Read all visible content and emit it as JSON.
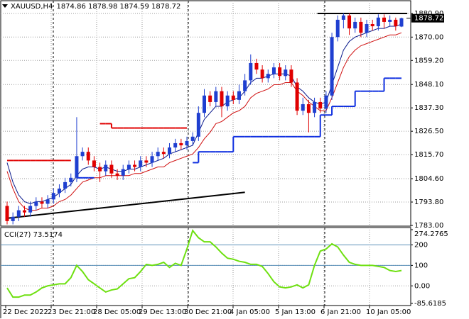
{
  "chart_data": [
    {
      "type": "candlestick",
      "title": "XAUUSD,H4",
      "ohlc_text": "1874.86 1878.98 1874.59 1878.72",
      "x_labels": [
        "22 Dec 2022",
        "23 Dec 21:00",
        "28 Dec 05:00",
        "29 Dec 13:00",
        "30 Dec 21:00",
        "4 Jan 05:00",
        "5 Jan 13:00",
        "6 Jan 21:00",
        "10 Jan 05:00"
      ],
      "up_color": "#1f3fd0",
      "down_color": "#e00000",
      "open": [
        1792,
        1785,
        1787,
        1790,
        1789,
        1792,
        1794,
        1793,
        1795,
        1798,
        1800,
        1803,
        1805,
        1815,
        1817,
        1813,
        1810,
        1808,
        1811,
        1807,
        1806,
        1809,
        1811,
        1810,
        1813,
        1812,
        1815,
        1817,
        1816,
        1819,
        1821,
        1820,
        1822,
        1824,
        1835,
        1843,
        1840,
        1845,
        1838,
        1843,
        1841,
        1845,
        1850,
        1858,
        1855,
        1851,
        1853,
        1856,
        1852,
        1855,
        1849,
        1836,
        1839,
        1835,
        1840,
        1837,
        1843,
        1870,
        1878,
        1880,
        1874,
        1877,
        1872,
        1876,
        1875,
        1879,
        1877,
        1878,
        1874.86
      ],
      "high": [
        1794,
        1789,
        1792,
        1792,
        1794,
        1796,
        1796,
        1797,
        1800,
        1802,
        1805,
        1807,
        1833,
        1819,
        1819,
        1815,
        1812,
        1813,
        1813,
        1809,
        1811,
        1813,
        1813,
        1815,
        1815,
        1817,
        1819,
        1819,
        1821,
        1823,
        1823,
        1824,
        1826,
        1838,
        1846,
        1845,
        1847,
        1847,
        1845,
        1845,
        1848,
        1853,
        1862,
        1860,
        1857,
        1855,
        1858,
        1858,
        1857,
        1857,
        1851,
        1842,
        1841,
        1842,
        1842,
        1845,
        1872,
        1880,
        1881,
        1881,
        1879,
        1879,
        1878,
        1878,
        1880.5,
        1880.5,
        1880,
        1879,
        1878.98
      ],
      "low": [
        1783.5,
        1783.5,
        1785,
        1787,
        1787,
        1790,
        1791,
        1791,
        1793,
        1796,
        1798,
        1801,
        1803,
        1813,
        1811,
        1808,
        1803,
        1806,
        1805,
        1804,
        1804,
        1807,
        1808,
        1808,
        1810,
        1810,
        1813,
        1814,
        1814,
        1817,
        1818,
        1818,
        1820,
        1822,
        1833,
        1838,
        1838,
        1833,
        1836,
        1839,
        1839,
        1843,
        1848,
        1853,
        1849,
        1849,
        1851,
        1850,
        1850,
        1847,
        1834,
        1834,
        1826,
        1833,
        1835,
        1835,
        1841,
        1868,
        1874,
        1871,
        1872,
        1870,
        1870,
        1873,
        1873,
        1874,
        1875,
        1873,
        1874.59
      ],
      "close": [
        1785,
        1787,
        1790,
        1789,
        1792,
        1794,
        1793,
        1795,
        1798,
        1800,
        1803,
        1805,
        1815,
        1817,
        1813,
        1810,
        1808,
        1811,
        1807,
        1806,
        1809,
        1811,
        1810,
        1813,
        1812,
        1815,
        1817,
        1816,
        1819,
        1821,
        1820,
        1822,
        1824,
        1835,
        1843,
        1840,
        1845,
        1838,
        1843,
        1841,
        1845,
        1850,
        1858,
        1855,
        1851,
        1853,
        1856,
        1852,
        1855,
        1849,
        1836,
        1839,
        1835,
        1840,
        1837,
        1843,
        1870,
        1878,
        1880,
        1874,
        1877,
        1872,
        1876,
        1875,
        1879,
        1877,
        1878,
        1875,
        1878.72
      ],
      "lines": [
        {
          "color": "#0a1a8c",
          "step": false,
          "values": [
            1812,
            1803,
            1797,
            1794,
            1793,
            1794,
            1794,
            1795,
            1796,
            1798,
            1800,
            1802,
            1806,
            1809,
            1810,
            1810,
            1809,
            1810,
            1809,
            1808,
            1808,
            1809,
            1809,
            1810,
            1811,
            1812,
            1813,
            1814,
            1816,
            1817,
            1818,
            1819,
            1820,
            1826,
            1832,
            1835,
            1838,
            1838,
            1840,
            1841,
            1842,
            1845,
            1849,
            1851,
            1851,
            1852,
            1853,
            1853,
            1853,
            1852,
            1847,
            1845,
            1842,
            1840,
            1839,
            1840,
            1848,
            1856,
            1864,
            1868,
            1870,
            1871,
            1872,
            1873,
            1874,
            1874,
            1875,
            1875,
            1876
          ]
        },
        {
          "color": "#d01010",
          "step": false,
          "values": [
            1808,
            1800,
            1794,
            1791,
            1790,
            1790,
            1791,
            1791,
            1792,
            1794,
            1795,
            1797,
            1800,
            1803,
            1804,
            1805,
            1805,
            1806,
            1806,
            1806,
            1806,
            1806,
            1807,
            1807,
            1808,
            1809,
            1810,
            1810,
            1812,
            1813,
            1814,
            1815,
            1816,
            1819,
            1823,
            1826,
            1830,
            1831,
            1833,
            1835,
            1836,
            1838,
            1842,
            1844,
            1845,
            1846,
            1848,
            1848,
            1849,
            1849,
            1845,
            1843,
            1840,
            1838,
            1836,
            1836,
            1842,
            1849,
            1856,
            1861,
            1864,
            1866,
            1867,
            1868,
            1869,
            1870,
            1871,
            1871,
            1872
          ]
        },
        {
          "color": "#e00000",
          "step": true,
          "values": [
            1813,
            1813,
            1813,
            1813,
            1813,
            1813,
            1813,
            1813,
            1813,
            1813,
            1813,
            1813,
            null,
            null,
            null,
            null,
            1830,
            1830,
            1828,
            1828,
            1828,
            1828,
            1828,
            1828,
            1828,
            1828,
            1828,
            1828,
            1828,
            1828,
            1828,
            1828,
            null,
            null,
            null,
            null,
            null,
            null,
            null,
            null,
            null,
            null,
            null,
            null,
            null,
            null,
            null,
            null,
            null,
            null,
            null,
            null,
            null,
            null,
            null,
            null,
            null,
            null,
            null,
            null,
            null,
            null,
            null,
            null,
            null,
            null,
            null,
            null,
            null
          ]
        },
        {
          "color": "#1030e0",
          "step": true,
          "values": [
            null,
            null,
            null,
            null,
            null,
            null,
            null,
            null,
            null,
            null,
            null,
            null,
            1805,
            1805,
            1805,
            1805,
            null,
            null,
            null,
            null,
            null,
            null,
            null,
            null,
            null,
            null,
            null,
            null,
            null,
            null,
            null,
            null,
            1812,
            1817,
            1817,
            1817,
            1817,
            1817,
            1817,
            1824,
            1824,
            1824,
            1824,
            1824,
            1824,
            1824,
            1824,
            1824,
            1824,
            1824,
            1824,
            1824,
            1824,
            1824,
            1834,
            1834,
            1838,
            1838,
            1838,
            1838,
            1845,
            1845,
            1845,
            1845,
            1845,
            1851,
            1851,
            1851,
            1851
          ]
        }
      ],
      "trendlines": [
        {
          "color": "#000000",
          "x": [
            0,
            41
          ],
          "values": [
            1786.3,
            1798.3
          ]
        },
        {
          "color": "#000000",
          "x": [
            53.5,
            69
          ],
          "values": [
            1880.9,
            1880.9
          ]
        }
      ],
      "last_price": 1878.72,
      "ylim": [
        1783.0,
        1886.8
      ],
      "yticks": [
        {
          "value": 1880.9,
          "label": "1880.90"
        },
        {
          "value": 1870.0,
          "label": "1870.00"
        },
        {
          "value": 1859.2,
          "label": "1859.20"
        },
        {
          "value": 1848.1,
          "label": "1848.10"
        },
        {
          "value": 1837.3,
          "label": "1837.30"
        },
        {
          "value": 1826.5,
          "label": "1826.50"
        },
        {
          "value": 1815.7,
          "label": "1815.70"
        },
        {
          "value": 1804.6,
          "label": "1804.60"
        },
        {
          "value": 1793.8,
          "label": "1793.80"
        },
        {
          "value": 1783.0,
          "label": "1783.00"
        }
      ],
      "grid": true
    },
    {
      "type": "line",
      "title": "CCI(27) 73.5174",
      "color": "#6ee010",
      "values": [
        -10,
        -55,
        -55,
        -45,
        -45,
        -30,
        -10,
        0,
        5,
        10,
        10,
        40,
        100,
        70,
        30,
        10,
        -10,
        -30,
        -20,
        -15,
        10,
        35,
        40,
        70,
        105,
        100,
        105,
        115,
        90,
        110,
        100,
        180,
        270,
        235,
        215,
        215,
        190,
        160,
        135,
        130,
        120,
        115,
        105,
        105,
        95,
        60,
        20,
        -5,
        -10,
        -5,
        5,
        -10,
        5,
        100,
        170,
        180,
        205,
        190,
        150,
        115,
        105,
        100,
        100,
        100,
        95,
        90,
        75,
        70,
        75
      ],
      "levels": [
        200,
        100
      ],
      "level_color": "#5a8fb8",
      "ylim": [
        -85.6185,
        274.2765
      ],
      "yticks": [
        274.2765,
        200,
        100,
        {
          "value": 0,
          "label": "0.00"
        },
        -85.6185
      ],
      "grid": true
    }
  ]
}
